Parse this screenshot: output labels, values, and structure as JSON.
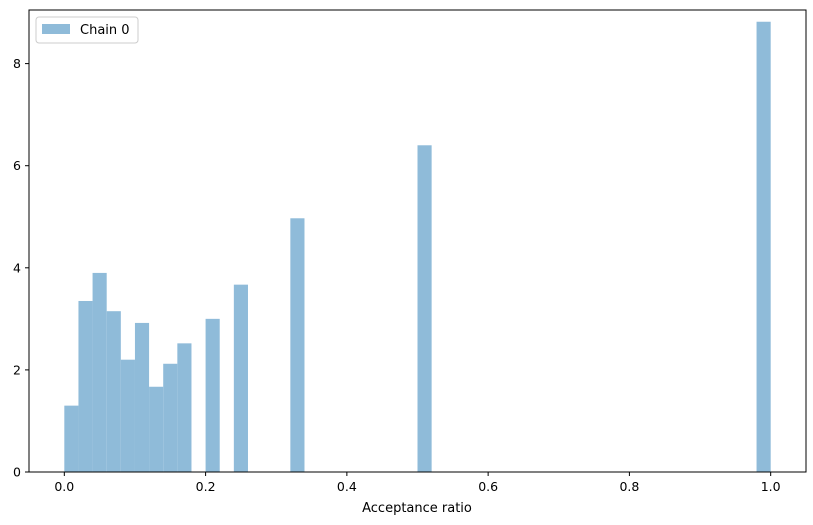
{
  "chart_data": {
    "type": "histogram",
    "title": "",
    "xlabel": "Acceptance ratio",
    "ylabel": "",
    "xlim": [
      -0.05,
      1.05
    ],
    "ylim": [
      0,
      9.05
    ],
    "xticks": [
      0.0,
      0.2,
      0.4,
      0.6,
      0.8,
      1.0
    ],
    "xtick_labels": [
      "0.0",
      "0.2",
      "0.4",
      "0.6",
      "0.8",
      "1.0"
    ],
    "yticks": [
      0,
      2,
      4,
      6,
      8
    ],
    "ytick_labels": [
      "0",
      "2",
      "4",
      "6",
      "8"
    ],
    "grid": false,
    "legend": {
      "position": "top-left",
      "entries": [
        "Chain 0"
      ]
    },
    "bin_width": 0.02,
    "series": [
      {
        "name": "Chain 0",
        "color": "#8fbbd9",
        "bins": [
          {
            "x0": 0.0,
            "x1": 0.02,
            "value": 1.3
          },
          {
            "x0": 0.02,
            "x1": 0.04,
            "value": 3.35
          },
          {
            "x0": 0.04,
            "x1": 0.06,
            "value": 3.9
          },
          {
            "x0": 0.06,
            "x1": 0.08,
            "value": 3.15
          },
          {
            "x0": 0.08,
            "x1": 0.1,
            "value": 2.2
          },
          {
            "x0": 0.1,
            "x1": 0.12,
            "value": 2.92
          },
          {
            "x0": 0.12,
            "x1": 0.14,
            "value": 1.67
          },
          {
            "x0": 0.14,
            "x1": 0.16,
            "value": 2.12
          },
          {
            "x0": 0.16,
            "x1": 0.18,
            "value": 2.52
          },
          {
            "x0": 0.2,
            "x1": 0.22,
            "value": 3.0
          },
          {
            "x0": 0.24,
            "x1": 0.26,
            "value": 3.67
          },
          {
            "x0": 0.32,
            "x1": 0.34,
            "value": 4.97
          },
          {
            "x0": 0.5,
            "x1": 0.52,
            "value": 6.4
          },
          {
            "x0": 0.98,
            "x1": 1.0,
            "value": 8.82
          }
        ]
      }
    ]
  }
}
